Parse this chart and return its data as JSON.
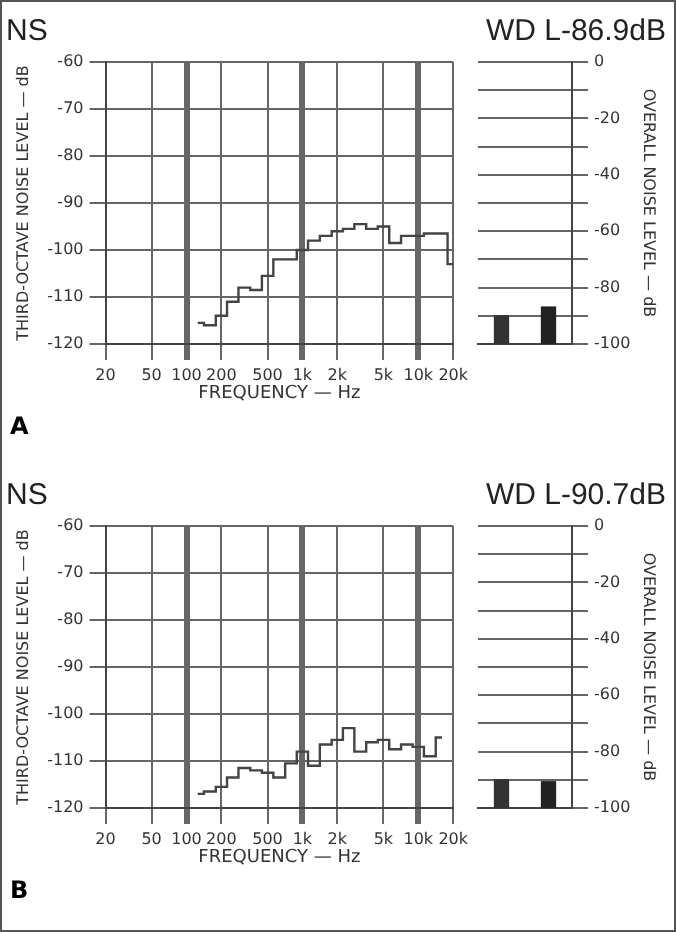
{
  "chart_data": [
    {
      "type": "step",
      "title": "NS",
      "xlabel": "FREQUENCY — Hz",
      "ylabel": "THIRD-OCTAVE NOISE LEVEL — dB",
      "annotations": [
        "A"
      ],
      "color": "#444444",
      "marker": "none",
      "log": "x",
      "grid": true,
      "x": [
        125,
        160,
        200,
        250,
        315,
        400,
        500,
        630,
        800,
        1000,
        1250,
        1600,
        2000,
        2500,
        3150,
        4000,
        5000,
        6300,
        8000,
        10000,
        12500,
        16000,
        20000
      ],
      "values": [
        -115.5,
        -116,
        -114,
        -111,
        -108,
        -108.5,
        -105.5,
        -102,
        -102,
        -100,
        -98,
        -97,
        -96,
        -95.5,
        -94.5,
        -95.5,
        -95,
        -98.5,
        -97,
        -97,
        -96.5,
        -96.5,
        -103
      ],
      "xlim": [
        20,
        20000
      ],
      "xticks": [
        20,
        50,
        100,
        200,
        500,
        {
          "value": 1000,
          "label": "1k"
        },
        {
          "value": 2000,
          "label": "2k"
        },
        {
          "value": 5000,
          "label": "5k"
        },
        {
          "value": 10000,
          "label": "10k"
        },
        {
          "value": 20000,
          "label": "20k"
        }
      ],
      "ylim": [
        -120,
        -60
      ],
      "yticks": [
        -120,
        -110,
        -100,
        -90,
        -80,
        -70,
        -60
      ]
    },
    {
      "type": "bar",
      "title": "WD L-86.9dB",
      "ylabel": "OVERALL NOISE LEVEL — dB",
      "grid": "y",
      "categories": [
        null,
        null
      ],
      "values": [
        10,
        13.1
      ],
      "base": [
        -100,
        -100
      ],
      "colors": [
        "#333333",
        "#222222"
      ],
      "ylim": [
        -100,
        0
      ],
      "yticks": [
        -100,
        {
          "value": -90,
          "label": null
        },
        -80,
        {
          "value": -70,
          "label": null
        },
        -60,
        {
          "value": -50,
          "label": null
        },
        -40,
        {
          "value": -30,
          "label": null
        },
        -20,
        {
          "value": -10,
          "label": null
        },
        0
      ]
    },
    {
      "type": "step",
      "title": "NS",
      "xlabel": "FREQUENCY — Hz",
      "ylabel": "THIRD-OCTAVE NOISE LEVEL — dB",
      "annotations": [
        "B"
      ],
      "color": "#444444",
      "marker": "none",
      "log": "x",
      "grid": true,
      "x": [
        125,
        160,
        200,
        250,
        315,
        400,
        500,
        630,
        800,
        1000,
        1250,
        1600,
        2000,
        2500,
        3150,
        4000,
        5000,
        6300,
        8000,
        10000,
        12500,
        16000
      ],
      "values": [
        -117,
        -116.5,
        -115.5,
        -113.5,
        -111.5,
        -112,
        -112.5,
        -113.5,
        -110.5,
        -108,
        -111,
        -106.5,
        -105.5,
        -103,
        -108,
        -106,
        -105.5,
        -107.5,
        -106.5,
        -107,
        -109,
        -105
      ],
      "xlim": [
        20,
        20000
      ],
      "xticks": [
        20,
        50,
        100,
        200,
        500,
        {
          "value": 1000,
          "label": "1k"
        },
        {
          "value": 2000,
          "label": "2k"
        },
        {
          "value": 5000,
          "label": "5k"
        },
        {
          "value": 10000,
          "label": "10k"
        },
        {
          "value": 20000,
          "label": "20k"
        }
      ],
      "ylim": [
        -120,
        -60
      ],
      "yticks": [
        -120,
        -110,
        -100,
        -90,
        -80,
        -70,
        -60
      ]
    },
    {
      "type": "bar",
      "title": "WD L-90.7dB",
      "ylabel": "OVERALL NOISE LEVEL — dB",
      "grid": "y",
      "categories": [
        null,
        null
      ],
      "values": [
        10,
        9.3
      ],
      "base": [
        -100,
        -100
      ],
      "colors": [
        "#333333",
        "#222222"
      ],
      "ylim": [
        -100,
        0
      ],
      "yticks": [
        -100,
        {
          "value": -90,
          "label": null
        },
        -80,
        {
          "value": -70,
          "label": null
        },
        -60,
        {
          "value": -50,
          "label": null
        },
        -40,
        {
          "value": -30,
          "label": null
        },
        -20,
        {
          "value": -10,
          "label": null
        },
        0
      ]
    }
  ]
}
